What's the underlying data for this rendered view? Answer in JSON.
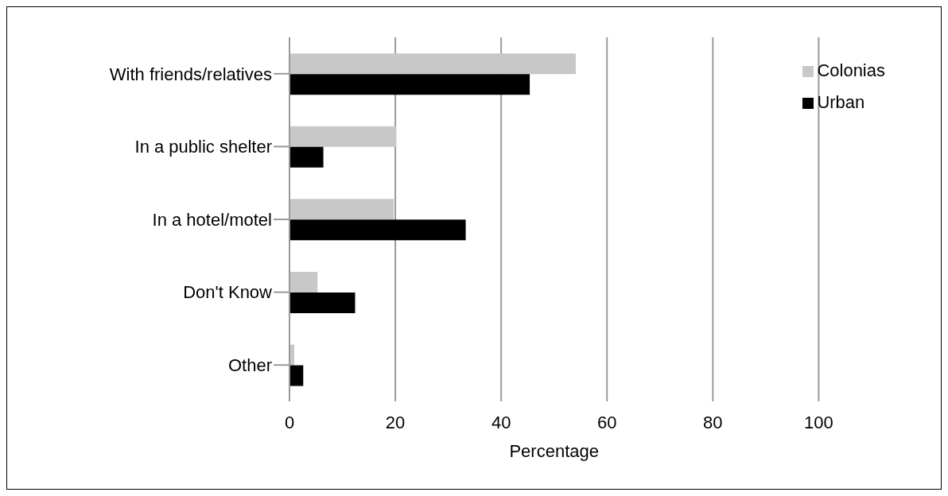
{
  "chart_data": {
    "type": "bar",
    "orientation": "horizontal",
    "xlabel": "Percentage",
    "categories": [
      "With friends/relatives",
      "In a public shelter",
      "In a hotel/motel",
      "Don't Know",
      "Other"
    ],
    "series": [
      {
        "name": "Colonias",
        "color": "#c8c8c8",
        "values": [
          54.1,
          20.2,
          19.7,
          5.3,
          0.9
        ]
      },
      {
        "name": "Urban",
        "color": "#000000",
        "values": [
          45.4,
          6.4,
          33.3,
          12.4,
          2.6
        ]
      }
    ],
    "xlim": [
      0,
      100
    ],
    "xticks": [
      0,
      20,
      40,
      60,
      80,
      100
    ],
    "grid": "x",
    "legend": "top right"
  }
}
